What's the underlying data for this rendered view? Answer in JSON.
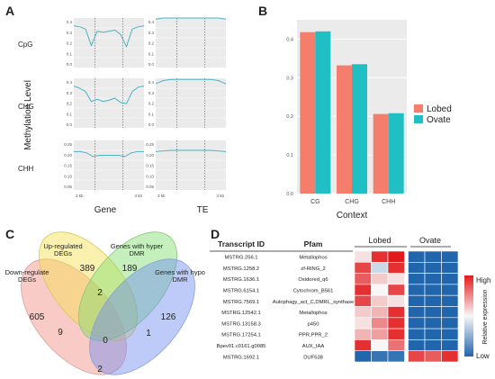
{
  "panels": {
    "a": "A",
    "b": "B",
    "c": "C",
    "d": "D"
  },
  "panel_a": {
    "ylabel": "Methylation Level",
    "xlabels": [
      "Gene",
      "TE"
    ],
    "rows": [
      {
        "context": "CpG",
        "yticks": [
          "0.4",
          "0.3",
          "0.2",
          "0.1",
          "0.0"
        ]
      },
      {
        "context": "CHG",
        "yticks": [
          "0.4",
          "0.3",
          "0.2",
          "0.1",
          "0.0"
        ]
      },
      {
        "context": "CHH",
        "yticks": [
          "0.25",
          "0.20",
          "0.15",
          "0.10",
          "0.05"
        ]
      }
    ],
    "axis_end": [
      "3 kb",
      "3 kb"
    ]
  },
  "chart_data": [
    {
      "type": "line",
      "panel": "A",
      "description_contexts": [
        "CpG",
        "CHG",
        "CHH"
      ],
      "xlabel": [
        "Gene",
        "TE"
      ],
      "ylabel": "Methylation Level",
      "subplots": [
        {
          "context": "CpG",
          "feature": "Gene",
          "y": [
            0.38,
            0.37,
            0.35,
            0.2,
            0.33,
            0.32,
            0.33,
            0.34,
            0.3,
            0.19,
            0.35,
            0.37,
            0.38
          ]
        },
        {
          "context": "CpG",
          "feature": "TE",
          "y": [
            0.44,
            0.45,
            0.45,
            0.45,
            0.45,
            0.45,
            0.45,
            0.45,
            0.45,
            0.44
          ]
        },
        {
          "context": "CHG",
          "feature": "Gene",
          "y": [
            0.38,
            0.36,
            0.33,
            0.24,
            0.26,
            0.24,
            0.25,
            0.27,
            0.23,
            0.22,
            0.33,
            0.37,
            0.38
          ]
        },
        {
          "context": "CHG",
          "feature": "TE",
          "y": [
            0.4,
            0.43,
            0.44,
            0.44,
            0.44,
            0.44,
            0.44,
            0.44,
            0.43,
            0.4
          ]
        },
        {
          "context": "CHH",
          "feature": "Gene",
          "y": [
            0.205,
            0.205,
            0.2,
            0.185,
            0.19,
            0.19,
            0.19,
            0.19,
            0.185,
            0.2,
            0.205,
            0.205
          ]
        },
        {
          "context": "CHH",
          "feature": "TE",
          "y": [
            0.205,
            0.208,
            0.21,
            0.21,
            0.21,
            0.21,
            0.21,
            0.21,
            0.208,
            0.205
          ]
        }
      ]
    },
    {
      "type": "bar",
      "panel": "B",
      "categories": [
        "CG",
        "CHG",
        "CHH"
      ],
      "series": [
        {
          "name": "Lobed",
          "values": [
            0.418,
            0.332,
            0.206
          ]
        },
        {
          "name": "Ovate",
          "values": [
            0.42,
            0.335,
            0.208
          ]
        }
      ],
      "xlabel": "Context",
      "ylim": [
        0,
        0.45
      ],
      "yticks": [
        "0.4",
        "0.3",
        "0.2",
        "0.1",
        "0.0"
      ],
      "legend": "right",
      "colors": {
        "Lobed": "#f57d6b",
        "Ovate": "#1fbfc4"
      }
    }
  ],
  "venn": {
    "labels": {
      "down": "Down-regulate DEGs",
      "up": "Up-regulated DEGs",
      "hyper": "Genes with hyper DMR",
      "hypo": "Genes with hypo DMR"
    },
    "counts": {
      "down": "605",
      "up": "389",
      "hyper": "189",
      "hypo": "126",
      "up_hyper": "2",
      "down_hyper": "9",
      "up_hypo": "1",
      "down_hypo": "2",
      "center": "0"
    }
  },
  "heatmap": {
    "headers": {
      "transcript": "Transcript ID",
      "pfam": "Pfam",
      "lobed": "Lobed",
      "ovate": "Ovate"
    },
    "rows": [
      {
        "id": "MSTRG.256.1",
        "pfam": "Metallophos",
        "values": [
          0.55,
          0.95,
          1.0,
          0.0,
          0.0,
          0.0
        ]
      },
      {
        "id": "MSTRG.1258.2",
        "pfam": "zf-RING_2",
        "values": [
          0.9,
          0.4,
          0.95,
          0.0,
          0.0,
          0.0
        ]
      },
      {
        "id": "MSTRG.1636.1",
        "pfam": "Oxidored_q6",
        "values": [
          0.85,
          0.6,
          0.55,
          0.0,
          0.0,
          0.0
        ]
      },
      {
        "id": "MSTRG.6154.1",
        "pfam": "Cytochrom_B561",
        "values": [
          0.95,
          0.5,
          0.9,
          0.0,
          0.0,
          0.0
        ]
      },
      {
        "id": "MSTRG.7569.1",
        "pfam": "Autophagy_act_C,DMRL_synthase",
        "values": [
          0.9,
          0.6,
          0.55,
          0.0,
          0.0,
          0.0
        ]
      },
      {
        "id": "MSTRG.12542.1",
        "pfam": "Metallophos",
        "values": [
          0.6,
          0.65,
          0.95,
          0.0,
          0.0,
          0.0
        ]
      },
      {
        "id": "MSTRG.13158.3",
        "pfam": "p450",
        "values": [
          0.55,
          0.75,
          0.95,
          0.0,
          0.0,
          0.0
        ]
      },
      {
        "id": "MSTRG.17254.1",
        "pfam": "PPR,PPR_2",
        "values": [
          0.65,
          0.7,
          0.95,
          0.0,
          0.0,
          0.0
        ]
      },
      {
        "id": "Bpev01.c0161.g0085",
        "pfam": "AUX_IAA",
        "values": [
          0.95,
          0.5,
          0.8,
          0.0,
          0.0,
          0.0
        ]
      },
      {
        "id": "MSTRG.1692.1",
        "pfam": "DUF538",
        "values": [
          0.0,
          0.05,
          0.05,
          0.9,
          0.85,
          0.95
        ]
      }
    ],
    "colorbar": {
      "title": "Relative expression",
      "high": "High",
      "low": "Low"
    }
  }
}
